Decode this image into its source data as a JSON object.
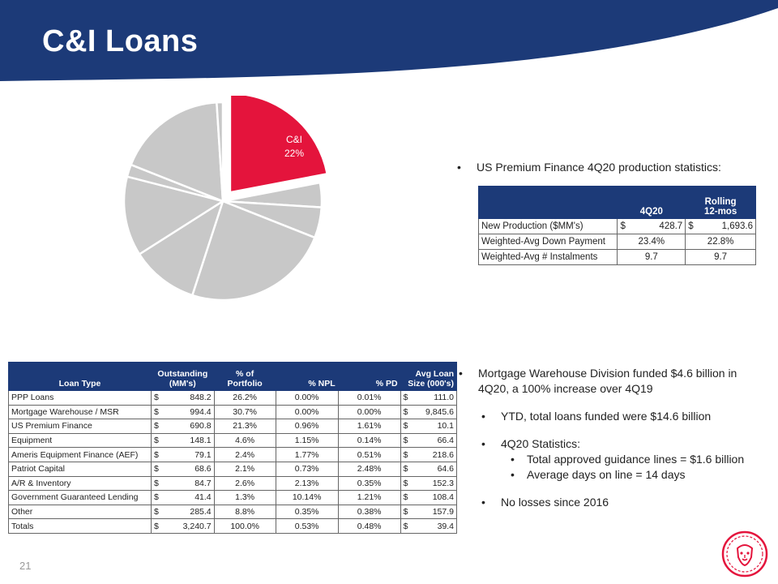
{
  "slide": {
    "title": "C&I Loans",
    "page_number": "21"
  },
  "colors": {
    "navy": "#1c3a78",
    "accent_red": "#e4143c",
    "slice_gray": "#c8c8c8",
    "logo_red": "#e4143c"
  },
  "pie": {
    "label": "C&I",
    "pct": "22%",
    "slices": [
      {
        "value": 22,
        "highlight": true
      },
      {
        "value": 4
      },
      {
        "value": 5
      },
      {
        "value": 24
      },
      {
        "value": 11
      },
      {
        "value": 13
      },
      {
        "value": 2
      },
      {
        "value": 18
      },
      {
        "value": 1
      }
    ]
  },
  "us_premium": {
    "bullet": "US Premium Finance 4Q20 production statistics:",
    "headers": [
      "",
      "4Q20",
      "Rolling 12-mos"
    ],
    "header_line1": [
      "",
      "",
      "Rolling"
    ],
    "header_line2": [
      "",
      "4Q20",
      "12-mos"
    ],
    "rows": [
      {
        "label": "New Production ($MM's)",
        "sym1": "$",
        "v1": "428.7",
        "sym2": "$",
        "v2": "1,693.6"
      },
      {
        "label": "Weighted-Avg Down Payment",
        "v1": "23.4%",
        "v2": "22.8%"
      },
      {
        "label": "Weighted-Avg # Instalments",
        "v1": "9.7",
        "v2": "9.7"
      }
    ]
  },
  "loan_table": {
    "headers": {
      "loan_type": "Loan Type",
      "outstanding_1": "Outstanding",
      "outstanding_2": "(MM's)",
      "pct_1": "% of",
      "pct_2": "Portfolio",
      "npl": "% NPL",
      "pd": "% PD",
      "avg_1": "Avg Loan",
      "avg_2": "Size (000's)"
    },
    "rows": [
      {
        "type": "PPP Loans",
        "cur": "$",
        "outstanding": "848.2",
        "portfolio": "26.2%",
        "npl": "0.00%",
        "pd": "0.01%",
        "cur2": "$",
        "avg": "111.0"
      },
      {
        "type": "Mortgage Warehouse / MSR",
        "cur": "$",
        "outstanding": "994.4",
        "portfolio": "30.7%",
        "npl": "0.00%",
        "pd": "0.00%",
        "cur2": "$",
        "avg": "9,845.6"
      },
      {
        "type": "US Premium Finance",
        "cur": "$",
        "outstanding": "690.8",
        "portfolio": "21.3%",
        "npl": "0.96%",
        "pd": "1.61%",
        "cur2": "$",
        "avg": "10.1"
      },
      {
        "type": "Equipment",
        "cur": "$",
        "outstanding": "148.1",
        "portfolio": "4.6%",
        "npl": "1.15%",
        "pd": "0.14%",
        "cur2": "$",
        "avg": "66.4"
      },
      {
        "type": "Ameris Equipment Finance (AEF)",
        "cur": "$",
        "outstanding": "79.1",
        "portfolio": "2.4%",
        "npl": "1.77%",
        "pd": "0.51%",
        "cur2": "$",
        "avg": "218.6"
      },
      {
        "type": "Patriot Capital",
        "cur": "$",
        "outstanding": "68.6",
        "portfolio": "2.1%",
        "npl": "0.73%",
        "pd": "2.48%",
        "cur2": "$",
        "avg": "64.6"
      },
      {
        "type": "A/R & Inventory",
        "cur": "$",
        "outstanding": "84.7",
        "portfolio": "2.6%",
        "npl": "2.13%",
        "pd": "0.35%",
        "cur2": "$",
        "avg": "152.3"
      },
      {
        "type": "Government Guaranteed Lending",
        "cur": "$",
        "outstanding": "41.4",
        "portfolio": "1.3%",
        "npl": "10.14%",
        "pd": "1.21%",
        "cur2": "$",
        "avg": "108.4"
      },
      {
        "type": "Other",
        "cur": "$",
        "outstanding": "285.4",
        "portfolio": "8.8%",
        "npl": "0.35%",
        "pd": "0.38%",
        "cur2": "$",
        "avg": "157.9"
      },
      {
        "type": "Totals",
        "cur": "$",
        "outstanding": "3,240.7",
        "portfolio": "100.0%",
        "npl": "0.53%",
        "pd": "0.48%",
        "cur2": "$",
        "avg": "39.4"
      }
    ]
  },
  "mortgage_bullets": {
    "main": "Mortgage Warehouse Division funded $4.6 billion in 4Q20, a 100% increase over 4Q19",
    "ytd": "YTD, total loans funded were $14.6 billion",
    "stats_title": "4Q20 Statistics:",
    "stats": [
      "Total approved guidance lines = $1.6 billion",
      "Average days on line = 14 days"
    ],
    "losses": "No losses since 2016"
  },
  "icons": {
    "bullet": "•",
    "logo": "lion-head-icon"
  }
}
